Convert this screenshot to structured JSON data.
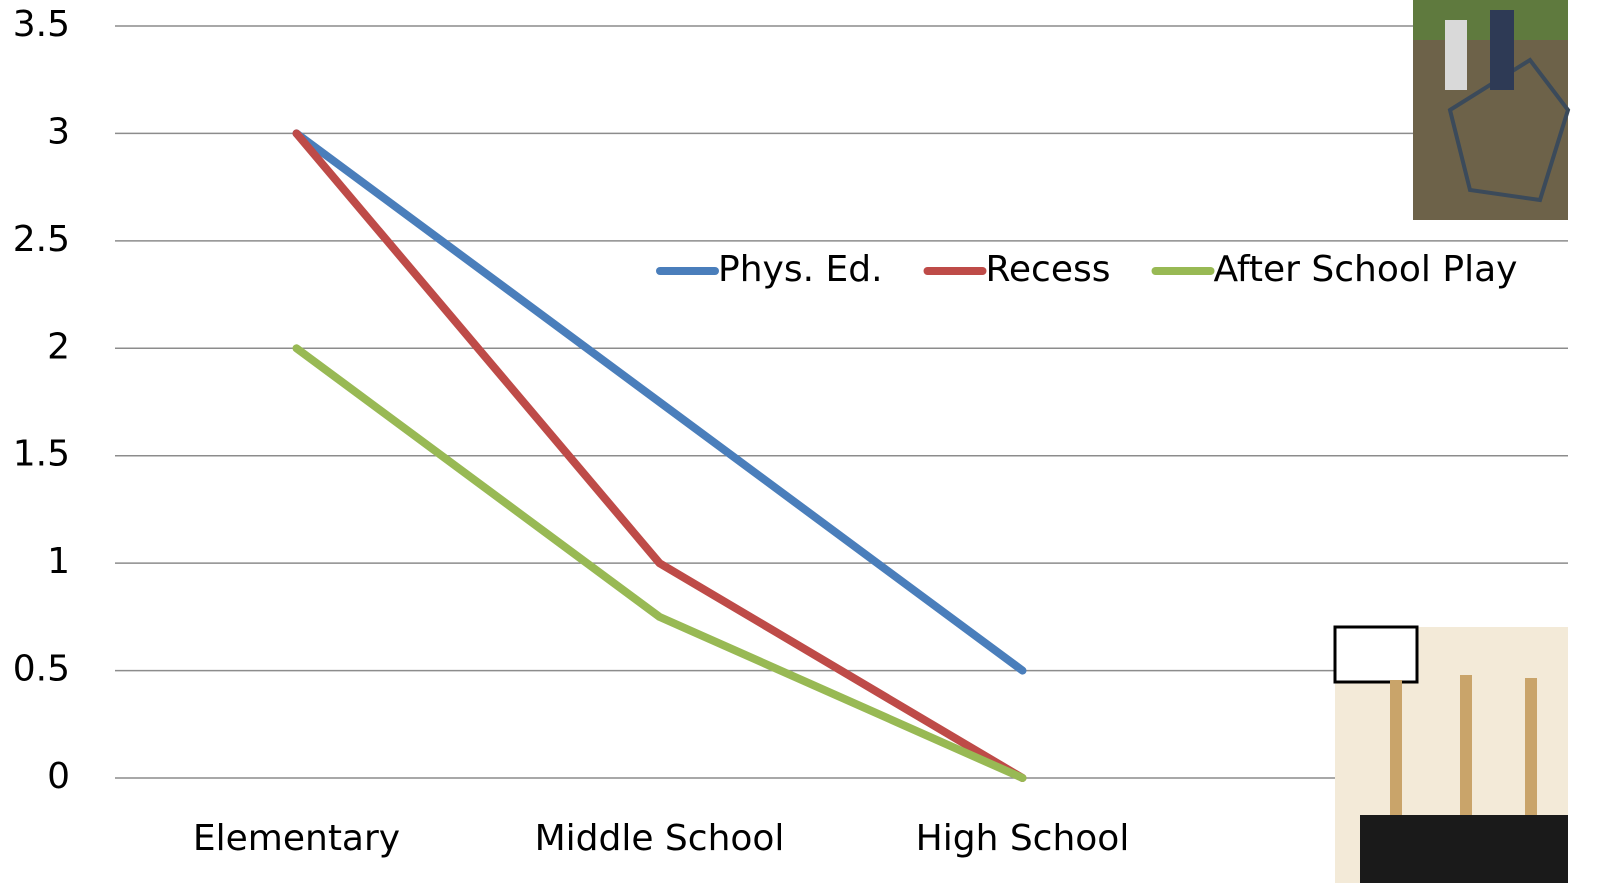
{
  "chart_data": {
    "type": "line",
    "categories": [
      "Elementary",
      "Middle School",
      "High School"
    ],
    "series": [
      {
        "name": "Phys. Ed.",
        "color": "#4a7ebb",
        "values": [
          3,
          1.75,
          0.5
        ]
      },
      {
        "name": "Recess",
        "color": "#be4b48",
        "values": [
          3,
          1,
          0
        ]
      },
      {
        "name": "After School Play",
        "color": "#98b954",
        "values": [
          2,
          0.75,
          0
        ]
      }
    ],
    "ylim": [
      0,
      3.5
    ],
    "yticks": [
      0,
      0.5,
      1,
      1.5,
      2,
      2.5,
      3,
      3.5
    ],
    "grid": true
  }
}
